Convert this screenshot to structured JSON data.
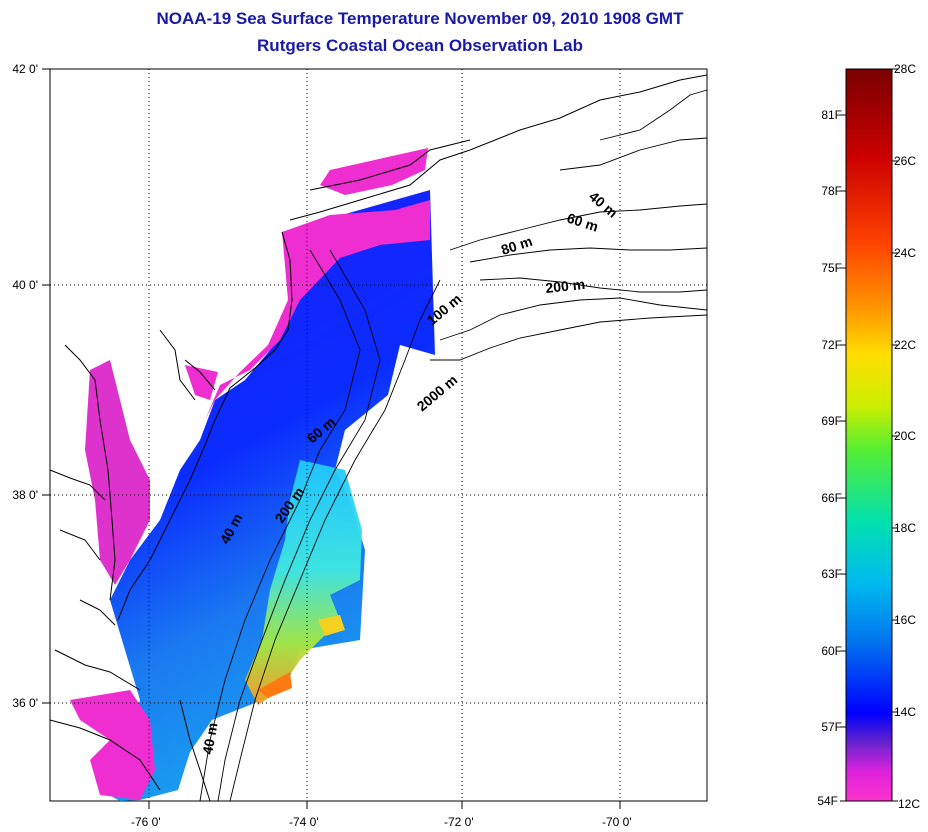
{
  "title": {
    "line1": "NOAA-19 Sea Surface Temperature November 09, 2010 1908 GMT",
    "line2": "Rutgers Coastal Ocean Observation Lab"
  },
  "map": {
    "lat_ticks": [
      "42 0'",
      "40 0'",
      "38 0'",
      "36 0'"
    ],
    "lon_ticks": [
      "-76 0'",
      "-74 0'",
      "-72 0'",
      "-70 0'"
    ],
    "contour_labels": [
      "40 m",
      "60 m",
      "80 m",
      "200 m",
      "100 m",
      "2000 m",
      "60 m",
      "200 m",
      "40 m",
      "40 m"
    ]
  },
  "colorbar": {
    "fahrenheit": [
      "81F",
      "78F",
      "75F",
      "72F",
      "69F",
      "66F",
      "63F",
      "60F",
      "57F",
      "54F"
    ],
    "celsius": [
      "28C",
      "26C",
      "24C",
      "22C",
      "20C",
      "18C",
      "16C",
      "14C",
      "12C"
    ],
    "colors": [
      "#7a0000",
      "#cc0000",
      "#ff3300",
      "#ff8800",
      "#ffcc00",
      "#ccee00",
      "#55ee33",
      "#00ddaa",
      "#00bbee",
      "#0077ee",
      "#0000ff",
      "#5522cc",
      "#cc22cc",
      "#ff33cc"
    ]
  }
}
